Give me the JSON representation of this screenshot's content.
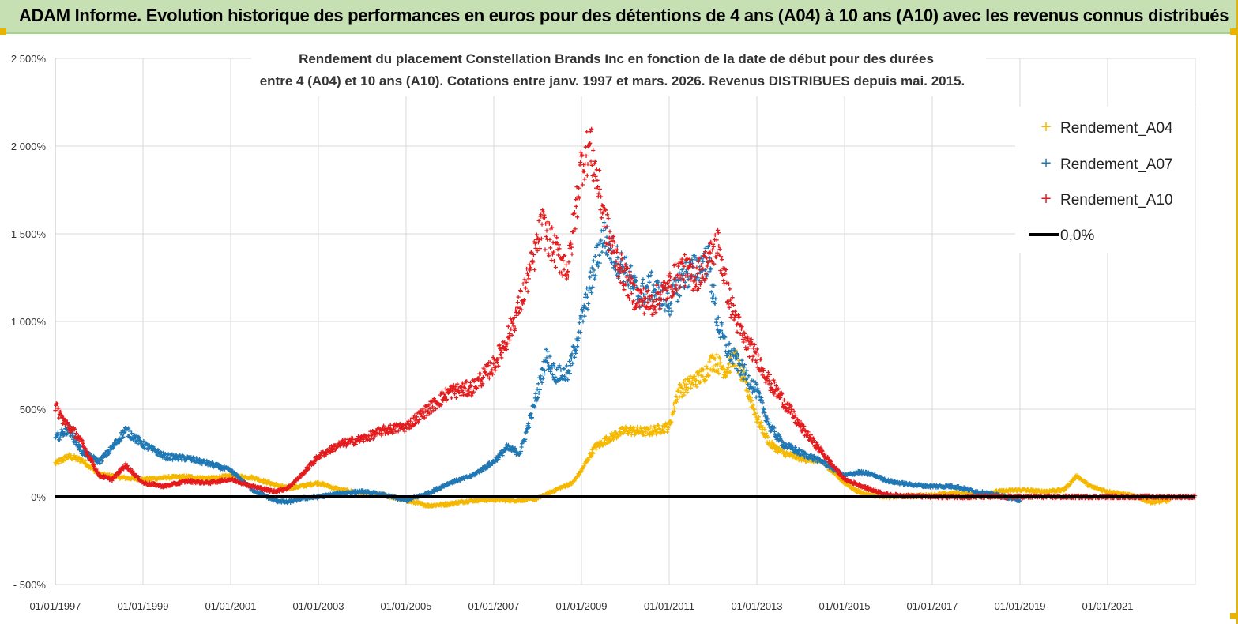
{
  "banner": {
    "title": "ADAM Informe. Evolution historique des performances en euros pour des détentions de 4 ans (A04) à 10 ans (A10) avec les revenus connus distribués"
  },
  "chart_data": {
    "type": "scatter",
    "title_line1": "Rendement du placement Constellation Brands Inc en fonction de la date de début pour des durées",
    "title_line2": "entre 4 (A04) et 10 ans (A10).  Cotations entre janv. 1997 et mars. 2026. Revenus DISTRIBUES depuis mai. 2015.",
    "xlabel": "",
    "ylabel": "",
    "ylim": [
      -500,
      2500
    ],
    "y_ticks": [
      -500,
      0,
      500,
      1000,
      1500,
      2000,
      2500
    ],
    "y_tick_labels": [
      "- 500%",
      "0%",
      "500%",
      "1 000%",
      "1 500%",
      "2 000%",
      "2 500%"
    ],
    "x_range_years": [
      1997.0,
      2023.0
    ],
    "x_ticks_years": [
      1997,
      1999,
      2001,
      2003,
      2005,
      2007,
      2009,
      2011,
      2013,
      2015,
      2017,
      2019,
      2021
    ],
    "x_tick_labels": [
      "01/01/1997",
      "01/01/1999",
      "01/01/2001",
      "01/01/2003",
      "01/01/2005",
      "01/01/2007",
      "01/01/2009",
      "01/01/2011",
      "01/01/2013",
      "01/01/2015",
      "01/01/2017",
      "01/01/2019",
      "01/01/2021"
    ],
    "grid": true,
    "legend_position": "top-right",
    "marker": "+",
    "series": [
      {
        "name": "Rendement_A04",
        "color": "#f5b800",
        "end_year": 2022.4,
        "x": [
          1997.0,
          1997.3,
          1997.6,
          1998.0,
          1998.5,
          1999.0,
          1999.5,
          2000.0,
          2000.5,
          2001.0,
          2001.5,
          2002.0,
          2002.3,
          2002.6,
          2003.0,
          2003.5,
          2004.0,
          2004.5,
          2005.0,
          2005.5,
          2006.0,
          2006.5,
          2007.0,
          2007.5,
          2008.0,
          2008.5,
          2008.8,
          2009.0,
          2009.3,
          2009.6,
          2010.0,
          2010.5,
          2011.0,
          2011.2,
          2011.5,
          2011.8,
          2012.0,
          2012.3,
          2012.5,
          2012.8,
          2013.0,
          2013.3,
          2013.6,
          2014.0,
          2014.5,
          2015.0,
          2015.3,
          2015.6,
          2016.0,
          2016.5,
          2017.0,
          2017.5,
          2018.0,
          2018.5,
          2019.0,
          2019.5,
          2020.0,
          2020.3,
          2020.6,
          2021.0,
          2021.5,
          2022.0,
          2022.4
        ],
        "values": [
          190,
          230,
          210,
          130,
          110,
          100,
          110,
          115,
          105,
          120,
          110,
          70,
          50,
          60,
          80,
          40,
          20,
          10,
          -20,
          -50,
          -40,
          -20,
          -15,
          -20,
          -10,
          50,
          80,
          150,
          280,
          330,
          380,
          370,
          400,
          600,
          650,
          700,
          780,
          720,
          800,
          600,
          450,
          300,
          250,
          220,
          200,
          80,
          30,
          10,
          0,
          5,
          10,
          20,
          15,
          30,
          40,
          30,
          40,
          120,
          60,
          30,
          10,
          -30,
          -20
        ]
      },
      {
        "name": "Rendement_A07",
        "color": "#1f77b4",
        "end_year": 2019.0,
        "x": [
          1997.0,
          1997.3,
          1997.6,
          1998.0,
          1998.3,
          1998.6,
          1999.0,
          1999.5,
          2000.0,
          2000.5,
          2001.0,
          2001.5,
          2002.0,
          2002.3,
          2002.6,
          2003.0,
          2003.5,
          2004.0,
          2004.5,
          2005.0,
          2005.5,
          2006.0,
          2006.5,
          2007.0,
          2007.3,
          2007.6,
          2007.9,
          2008.2,
          2008.4,
          2008.7,
          2009.0,
          2009.2,
          2009.5,
          2009.8,
          2010.0,
          2010.3,
          2010.6,
          2011.0,
          2011.3,
          2011.6,
          2011.9,
          2012.1,
          2012.3,
          2012.6,
          2013.0,
          2013.3,
          2013.6,
          2014.0,
          2014.5,
          2015.0,
          2015.3,
          2015.6,
          2016.0,
          2016.5,
          2017.0,
          2017.5,
          2018.0,
          2018.5,
          2019.0
        ],
        "values": [
          330,
          390,
          260,
          200,
          280,
          380,
          300,
          230,
          220,
          190,
          150,
          40,
          -20,
          -30,
          -10,
          0,
          20,
          30,
          10,
          -20,
          20,
          80,
          120,
          200,
          280,
          250,
          500,
          800,
          700,
          700,
          1000,
          1200,
          1500,
          1350,
          1300,
          1150,
          1200,
          1100,
          1250,
          1300,
          1350,
          1000,
          850,
          750,
          600,
          400,
          300,
          250,
          200,
          120,
          140,
          130,
          90,
          70,
          60,
          60,
          30,
          10,
          -20
        ]
      },
      {
        "name": "Rendement_A10",
        "color": "#e41a1c",
        "end_year": 2023.0,
        "x": [
          1997.0,
          1997.2,
          1997.5,
          1997.8,
          1998.0,
          1998.3,
          1998.6,
          1999.0,
          1999.5,
          2000.0,
          2000.5,
          2001.0,
          2001.5,
          2002.0,
          2002.3,
          2002.6,
          2003.0,
          2003.5,
          2004.0,
          2004.5,
          2005.0,
          2005.5,
          2006.0,
          2006.5,
          2007.0,
          2007.3,
          2007.6,
          2007.9,
          2008.1,
          2008.4,
          2008.7,
          2009.0,
          2009.2,
          2009.4,
          2009.6,
          2009.9,
          2010.2,
          2010.6,
          2011.0,
          2011.3,
          2011.6,
          2011.9,
          2012.1,
          2012.4,
          2012.7,
          2013.0,
          2013.3,
          2013.6,
          2014.0,
          2014.5,
          2015.0,
          2015.5,
          2016.0,
          2017.0,
          2018.0,
          2019.0,
          2020.0,
          2021.0,
          2022.0,
          2023.0
        ],
        "values": [
          520,
          430,
          350,
          220,
          120,
          100,
          180,
          80,
          60,
          90,
          80,
          100,
          60,
          30,
          50,
          120,
          230,
          300,
          330,
          380,
          400,
          500,
          600,
          620,
          750,
          900,
          1100,
          1350,
          1550,
          1400,
          1300,
          1900,
          2000,
          1750,
          1500,
          1300,
          1150,
          1100,
          1200,
          1300,
          1250,
          1350,
          1450,
          1100,
          900,
          800,
          650,
          550,
          400,
          250,
          100,
          50,
          10,
          0,
          0,
          0,
          0,
          0,
          0,
          0
        ]
      }
    ],
    "reference_line": {
      "name": "0,0%",
      "value": 0,
      "color": "#000000"
    }
  }
}
